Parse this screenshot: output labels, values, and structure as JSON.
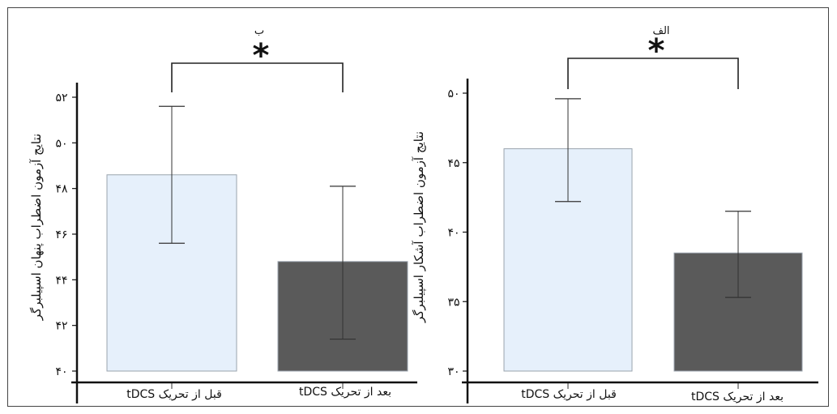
{
  "chart_data": [
    {
      "type": "bar",
      "panel_label": "ب",
      "ylabel": "نتایج آزمون اضطراب پنهان اسپیلبرگر",
      "categories": [
        "قبل از تحریک tDCS",
        "بعد از تحریک tDCS"
      ],
      "values": [
        48.6,
        44.8
      ],
      "error_bars": [
        {
          "low": 45.6,
          "high": 51.6
        },
        {
          "low": 41.4,
          "high": 48.1
        }
      ],
      "colors": [
        "#e6f0fb",
        "#5a5a5a"
      ],
      "ylim": [
        40,
        52
      ],
      "yticks": [
        40,
        42,
        44,
        46,
        48,
        50,
        52
      ],
      "ytick_labels": [
        "۴۰",
        "۴۲",
        "۴۴",
        "۴۶",
        "۴۸",
        "۵۰",
        "۵۲"
      ],
      "significance": "*"
    },
    {
      "type": "bar",
      "panel_label": "الف",
      "ylabel": "نتایج آزمون اضطراب آشکار اسپیلبرگر",
      "categories": [
        "قبل از تحریک tDCS",
        "بعد از تحریک tDCS"
      ],
      "values": [
        46.0,
        38.5
      ],
      "error_bars": [
        {
          "low": 42.2,
          "high": 49.6
        },
        {
          "low": 35.3,
          "high": 41.5
        }
      ],
      "colors": [
        "#e6f0fb",
        "#5a5a5a"
      ],
      "ylim": [
        30,
        50
      ],
      "yticks": [
        30,
        35,
        40,
        45,
        50
      ],
      "ytick_labels": [
        "۳۰",
        "۳۵",
        "۴۰",
        "۴۵",
        "۵۰"
      ],
      "significance": "*"
    }
  ]
}
